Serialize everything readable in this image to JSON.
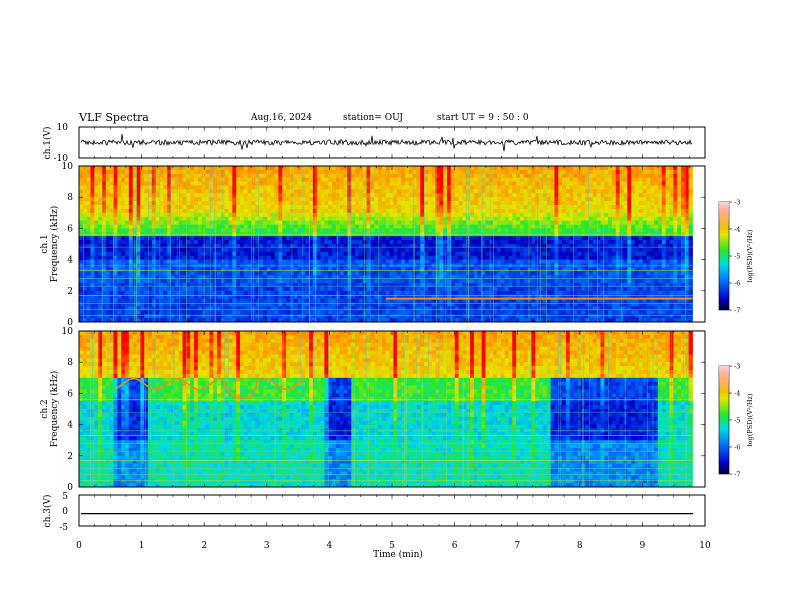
{
  "header": {
    "title": "VLF Spectra",
    "date": "Aug.16, 2024",
    "station": "station= OUJ",
    "start": "start  UT  =   9  : 50 : 0"
  },
  "chart_data": [
    {
      "type": "line",
      "panel": "waveform-ch1",
      "ylabel": "ch.1(V)",
      "ylim": [
        -10,
        10
      ],
      "yticks": [
        "10",
        "-10"
      ],
      "xlim": [
        0,
        10
      ],
      "trace_end_min": 9.8
    },
    {
      "type": "heatmap",
      "panel": "spectrogram-ch1",
      "ylabel_top": "ch.1",
      "ylabel": "Frequency  (kHz)",
      "ylim": [
        0,
        10
      ],
      "yticks": [
        "0",
        "2",
        "4",
        "6",
        "8",
        "10"
      ],
      "xlim": [
        0,
        10
      ],
      "data_end_min": 9.8,
      "colorbar": {
        "label": "log(PSD)(V²/Hz)",
        "range": [
          -7,
          -3
        ],
        "ticks": [
          "-3",
          "-4",
          "-5",
          "-6",
          "-7"
        ]
      }
    },
    {
      "type": "heatmap",
      "panel": "spectrogram-ch2",
      "ylabel_top": "ch.2",
      "ylabel": "Frequency  (kHz)",
      "ylim": [
        0,
        10
      ],
      "yticks": [
        "0",
        "2",
        "4",
        "6",
        "8",
        "10"
      ],
      "xlim": [
        0,
        10
      ],
      "data_end_min": 9.8,
      "colorbar": {
        "label": "log(PSD)(V²/Hz)",
        "range": [
          -7,
          -3
        ],
        "ticks": [
          "-3",
          "-4",
          "-5",
          "-6",
          "-7"
        ]
      }
    },
    {
      "type": "line",
      "panel": "waveform-ch3",
      "ylabel": "ch.3(V)",
      "ylim": [
        -5,
        5
      ],
      "yticks": [
        "5",
        "0",
        "-5"
      ],
      "xlim": [
        0,
        10
      ],
      "constant_value": -1
    }
  ],
  "xaxis": {
    "label": "Time  (min)",
    "ticks": [
      "0",
      "1",
      "2",
      "3",
      "4",
      "5",
      "6",
      "7",
      "8",
      "9",
      "10"
    ]
  }
}
